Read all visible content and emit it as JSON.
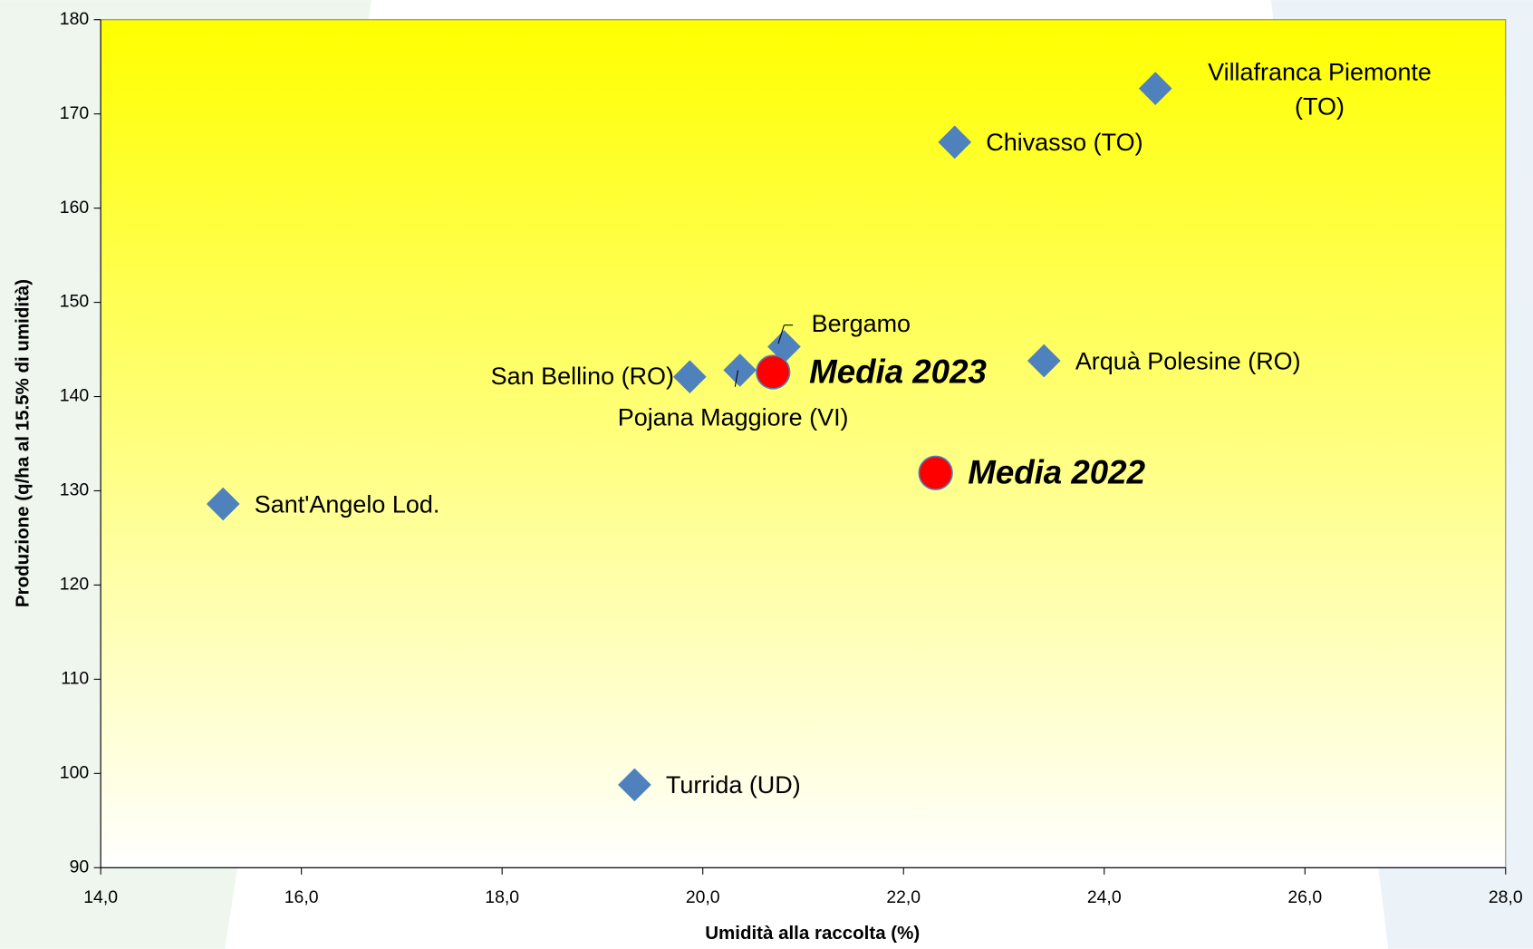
{
  "chart_data": {
    "type": "scatter",
    "xlabel": "Umidità alla raccolta (%)",
    "ylabel": "Produzione (q/ha al 15.5% di umidità)",
    "xlim": [
      14,
      28
    ],
    "xticks": [
      {
        "value": 14,
        "label": "14,0"
      },
      {
        "value": 16,
        "label": "16,0"
      },
      {
        "value": 18,
        "label": "18,0"
      },
      {
        "value": 20,
        "label": "20,0"
      },
      {
        "value": 22,
        "label": "22,0"
      },
      {
        "value": 24,
        "label": "24,0"
      },
      {
        "value": 26,
        "label": "26,0"
      },
      {
        "value": 28,
        "label": "28,0"
      }
    ],
    "ylim": [
      90,
      180
    ],
    "yticks": [
      90,
      100,
      110,
      120,
      130,
      140,
      150,
      160,
      170,
      180
    ],
    "series": [
      {
        "marker": "diamond",
        "color": "#4f81bd",
        "x": [
          24.51,
          22.51,
          20.81,
          23.4,
          20.37,
          19.87,
          15.22,
          19.32
        ],
        "values": [
          172.7,
          167.0,
          145.3,
          143.8,
          142.8,
          142.1,
          128.6,
          98.8
        ],
        "labels": [
          [
            "Villafranca Piemonte",
            "(TO)"
          ],
          [
            "Chivasso (TO)"
          ],
          [
            "Bergamo"
          ],
          [
            "Arquà Polesine (RO)"
          ],
          [
            "Pojana Maggiore (VI)"
          ],
          [
            "San Bellino (RO)"
          ],
          [
            "Sant'Angelo Lod."
          ],
          [
            "Turrida (UD)"
          ]
        ]
      },
      {
        "marker": "circle",
        "color": "#ff0000",
        "x": [
          20.7,
          22.32
        ],
        "values": [
          142.6,
          131.9
        ],
        "labels": [
          [
            "Media 2023"
          ],
          [
            "Media 2022"
          ]
        ]
      }
    ]
  }
}
